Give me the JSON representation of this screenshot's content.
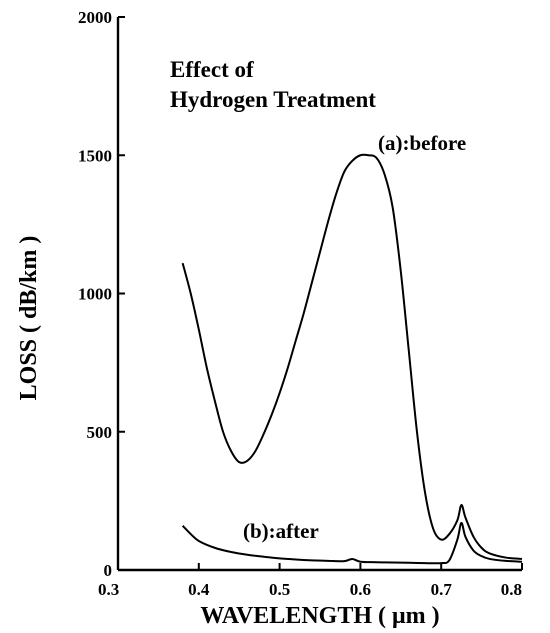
{
  "chart_data": {
    "type": "line",
    "title_lines": [
      "Effect of",
      "Hydrogen Treatment"
    ],
    "xlabel": "WAVELENGTH ( μm )",
    "ylabel": "LOSS ( dB/km )",
    "xlim": [
      0.3,
      0.8
    ],
    "ylim": [
      0,
      2000
    ],
    "x_ticks": [
      "0.3",
      "0.4",
      "0.5",
      "0.6",
      "0.7",
      "0.8"
    ],
    "y_ticks": [
      "0",
      "500",
      "1000",
      "1500",
      "2000"
    ],
    "grid": false,
    "series": [
      {
        "name": "(a):before",
        "x": [
          0.38,
          0.39,
          0.4,
          0.41,
          0.42,
          0.43,
          0.44,
          0.45,
          0.46,
          0.47,
          0.48,
          0.49,
          0.5,
          0.51,
          0.52,
          0.53,
          0.54,
          0.55,
          0.56,
          0.57,
          0.58,
          0.59,
          0.6,
          0.61,
          0.62,
          0.63,
          0.64,
          0.65,
          0.66,
          0.67,
          0.68,
          0.69,
          0.7,
          0.71,
          0.72,
          0.725,
          0.73,
          0.74,
          0.75,
          0.76,
          0.78,
          0.8
        ],
        "y": [
          1110,
          1000,
          870,
          730,
          610,
          500,
          430,
          390,
          395,
          430,
          490,
          560,
          640,
          730,
          830,
          930,
          1040,
          1150,
          1260,
          1360,
          1440,
          1480,
          1500,
          1500,
          1490,
          1430,
          1310,
          1080,
          790,
          500,
          280,
          150,
          110,
          130,
          180,
          235,
          190,
          120,
          80,
          60,
          45,
          40
        ]
      },
      {
        "name": "(b):after",
        "x": [
          0.38,
          0.39,
          0.4,
          0.42,
          0.44,
          0.46,
          0.48,
          0.5,
          0.52,
          0.54,
          0.56,
          0.58,
          0.59,
          0.6,
          0.62,
          0.64,
          0.66,
          0.68,
          0.7,
          0.71,
          0.72,
          0.725,
          0.73,
          0.74,
          0.75,
          0.76,
          0.78,
          0.8
        ],
        "y": [
          160,
          130,
          105,
          80,
          65,
          55,
          48,
          42,
          38,
          35,
          33,
          32,
          40,
          30,
          28,
          27,
          26,
          25,
          25,
          35,
          110,
          170,
          120,
          70,
          50,
          40,
          33,
          30
        ]
      }
    ],
    "series_label_a": "(a):before",
    "series_label_b": "(b):after"
  }
}
